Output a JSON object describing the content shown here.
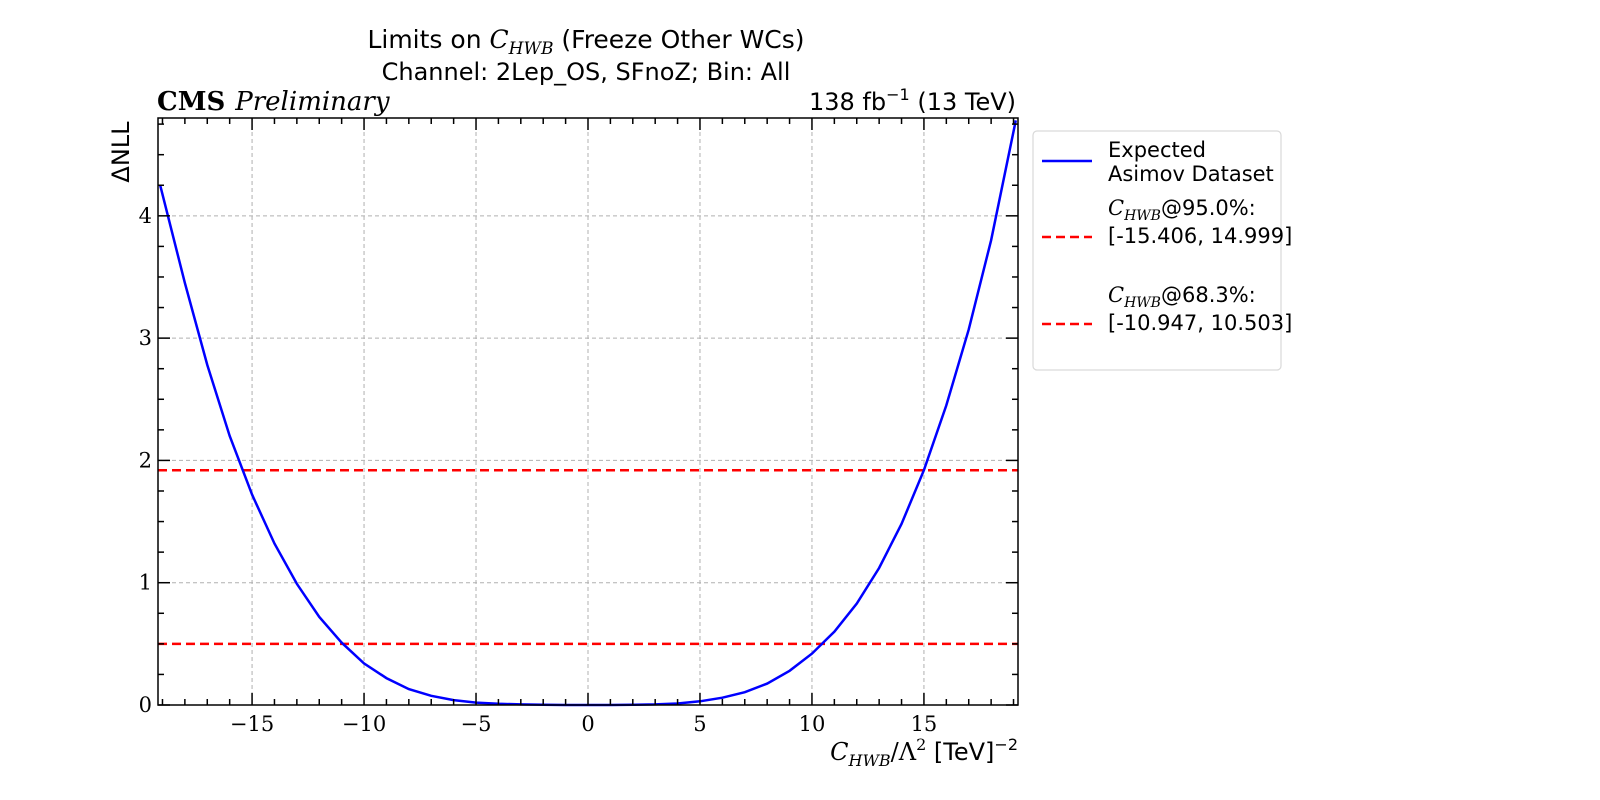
{
  "chart_data": {
    "type": "line",
    "title_line1_pre": "Limits on ",
    "title_line1_var": "C",
    "title_line1_sub": "HWB",
    "title_line1_post": " (Freeze Other WCs)",
    "title_line2": "Channel: 2Lep_OS, SFnoZ; Bin: All",
    "cms_label": "CMS",
    "cms_extra": "Preliminary",
    "lumi_pre": "138 fb",
    "lumi_exp": "−1",
    "lumi_post": " (13 TeV)",
    "ylabel": "ΔNLL",
    "xlabel_var": "C",
    "xlabel_sub": "HWB",
    "xlabel_mid": "/Λ",
    "xlabel_sq": "2",
    "xlabel_unit": " [TeV]",
    "xlabel_exp": "−2",
    "xlim": [
      -19.2,
      19.2
    ],
    "ylim": [
      0,
      4.8
    ],
    "xticks": [
      -15,
      -10,
      -5,
      0,
      5,
      10,
      15
    ],
    "xtick_labels": [
      "−15",
      "−10",
      "−5",
      "0",
      "5",
      "10",
      "15"
    ],
    "yticks": [
      0,
      1,
      2,
      3,
      4
    ],
    "ytick_labels": [
      "0",
      "1",
      "2",
      "3",
      "4"
    ],
    "grid": true,
    "legend_position": "outside-right",
    "series": [
      {
        "name_line1": "Expected",
        "name_line2": "Asimov Dataset",
        "color": "#0000ff",
        "x": [
          -19.1,
          -18,
          -17,
          -16,
          -15,
          -14,
          -13,
          -12,
          -11,
          -10,
          -9,
          -8,
          -7,
          -6,
          -5,
          -4,
          -3,
          -2,
          -1,
          0,
          1,
          2,
          3,
          4,
          5,
          6,
          7,
          8,
          9,
          10,
          11,
          12,
          13,
          14,
          15,
          16,
          17,
          18,
          19.1
        ],
        "y": [
          4.25,
          3.45,
          2.78,
          2.2,
          1.72,
          1.32,
          0.99,
          0.72,
          0.51,
          0.34,
          0.22,
          0.13,
          0.075,
          0.04,
          0.02,
          0.01,
          0.005,
          0.002,
          0.0,
          0.0,
          0.0,
          0.002,
          0.005,
          0.012,
          0.03,
          0.06,
          0.105,
          0.175,
          0.28,
          0.42,
          0.6,
          0.83,
          1.12,
          1.48,
          1.92,
          2.45,
          3.07,
          3.8,
          4.78
        ]
      }
    ],
    "hlines": [
      {
        "label_var": "C",
        "label_sub": "HWB",
        "label_cl": "@95.0%:",
        "label_interval": "[-15.406, 14.999]",
        "y": 1.92,
        "color": "#ff0000"
      },
      {
        "label_var": "C",
        "label_sub": "HWB",
        "label_cl": "@68.3%:",
        "label_interval": "[-10.947, 10.503]",
        "y": 0.5,
        "color": "#ff0000"
      }
    ]
  }
}
